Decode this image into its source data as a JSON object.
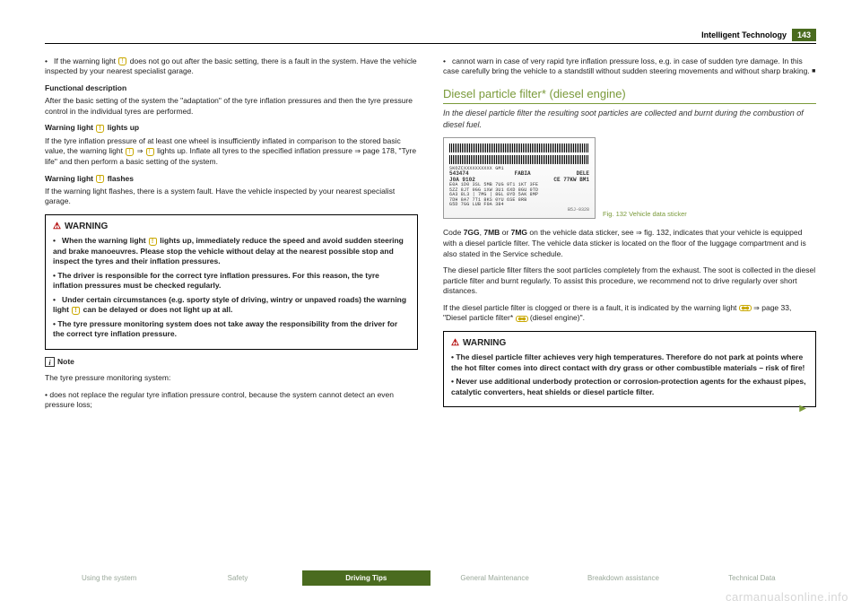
{
  "header": {
    "title": "Intelligent Technology",
    "page": "143"
  },
  "left": {
    "p1": "•   If the warning light  does not go out after the basic setting, there is a fault in the system. Have the vehicle inspected by your nearest specialist garage.",
    "fd_head": "Functional description",
    "fd_text": "After the basic setting of the system the \"adaptation\" of the tyre inflation pressures and then the tyre pressure control in the individual tyres are performed.",
    "wl_up_head": "Warning light  lights up",
    "wl_up_text": "If the tyre inflation pressure of at least one wheel is insufficiently inflated in comparison to the stored basic value, the warning light  ⇒  lights up. Inflate all tyres to the specified inflation pressure ⇒ page 178, \"Tyre life\" and then perform a basic setting of the system.",
    "wl_fl_head": "Warning light  flashes",
    "wl_fl_text": "If the warning light flashes, there is a system fault. Have the vehicle inspected by your nearest specialist garage.",
    "warn": {
      "head": "WARNING",
      "b1": "•   When the warning light  lights up, immediately reduce the speed and avoid sudden steering and brake manoeuvres. Please stop the vehicle without delay at the nearest possible stop and inspect the tyres and their inflation pressures.",
      "b2": "•   The driver is responsible for the correct tyre inflation pressures. For this reason, the tyre inflation pressures must be checked regularly.",
      "b3": "•   Under certain circumstances (e.g. sporty style of driving, wintry or unpaved roads) the warning light  can be delayed or does not light up at all.",
      "b4": "•   The tyre pressure monitoring system does not take away the responsibility from the driver for the correct tyre inflation pressure."
    },
    "note_head": "Note",
    "note_intro": "The tyre pressure monitoring system:",
    "note_b1": "•   does not replace the regular tyre inflation pressure control, because the system cannot detect an even pressure loss;"
  },
  "right": {
    "p1": "•   cannot warn in case of very rapid tyre inflation pressure loss, e.g. in case of sudden tyre damage. In this case carefully bring the vehicle to a standstill without sudden steering movements and without sharp braking. ",
    "section_title": "Diesel particle filter* (diesel engine)",
    "section_sub": "In the diesel particle filter the resulting soot particles are collected and burnt during the combustion of diesel fuel.",
    "fig_caption": "Fig. 132  Vehicle data sticker",
    "sticker": {
      "line2": "SKOZCXXXXXXXXXX    GM1",
      "r1a": "543474",
      "r1b": "FABIA",
      "r1c": "DELE",
      "r2a": "J0A  9102",
      "r2b": "CE  77KW BM1",
      "codes1": "E0A 1D0 3SL 5MB 7UG 9T1 1KT 3FE",
      "codes2": "5ZZ 8JT 0GG 1XW 3U1 6XD 8GU 0TD",
      "codes3": "6A3 8L3 | 7MG | 8GL 0YD 5AK 8MP",
      "codes4": "7DH 8A7   7T1  8KS 0YU 6SE 8RB",
      "codes5": "G5D 7GG LUB       F0A     384",
      "corner": "B5J-0328"
    },
    "p2": "Code 7GG, 7MB or 7MG on the vehicle data sticker, see ⇒ fig. 132, indicates that your vehicle is equipped with a diesel particle filter. The vehicle data sticker  is located on the floor of the luggage compartment and is also stated in the Service schedule.",
    "p3": "The diesel particle filter filters the soot particles completely from the exhaust. The soot is collected in the diesel particle filter and burnt regularly. To assist this procedure, we recommend not to drive regularly over short distances.",
    "p4": "If the diesel particle filter is clogged or there is a fault, it is indicated by the warning light  ⇒ page 33, \"Diesel particle filter*  (diesel engine)\".",
    "warn": {
      "head": "WARNING",
      "b1": "•   The diesel particle filter achieves very high temperatures. Therefore do not park at points where the hot filter comes into direct contact with dry grass or other combustible materials – risk of fire!",
      "b2": "•   Never use additional underbody protection or corrosion-protection agents for the exhaust pipes, catalytic converters, heat shields or diesel particle filter."
    }
  },
  "footer": {
    "t1": "Using the system",
    "t2": "Safety",
    "t3": "Driving Tips",
    "t4": "General Maintenance",
    "t5": "Breakdown assistance",
    "t6": "Technical Data"
  },
  "watermark": "carmanualsonline.info"
}
